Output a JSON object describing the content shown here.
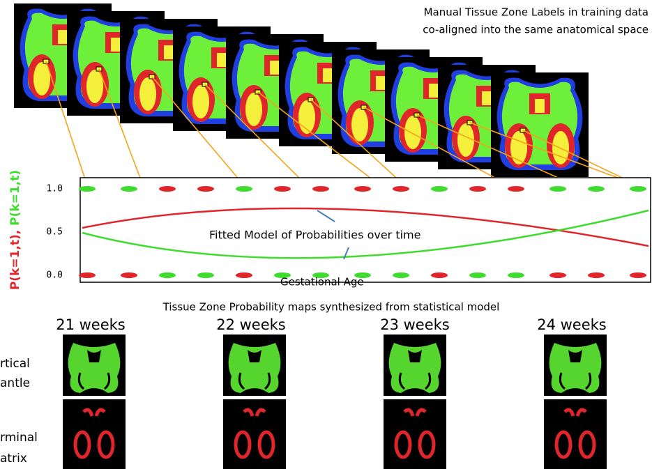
{
  "header": {
    "lines": [
      "Manual Tissue Zone Labels in training data",
      "co-aligned into the same anatomical space"
    ]
  },
  "plot": {
    "y_label_red": "P(k=1,t),",
    "y_label_green": "P(k=1,t)",
    "ticks": [
      "1.0",
      "0.5",
      "0.0"
    ],
    "annotation": "Fitted Model of Probabilities over time",
    "x_label": "Gestational Age"
  },
  "maps": {
    "title": "Tissue Zone Probability maps synthesized from statistical model",
    "columns": [
      "21 weeks",
      "22 weeks",
      "23 weeks",
      "24 weeks"
    ],
    "rows": [
      [
        "rtical",
        "antle"
      ],
      [
        "rminal",
        "atrix"
      ]
    ]
  }
}
